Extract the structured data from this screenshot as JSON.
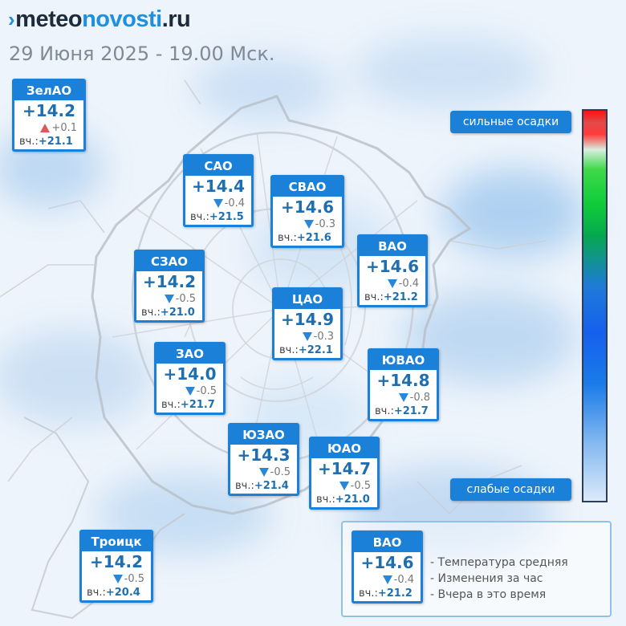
{
  "header": {
    "logo_prefix": "meteo",
    "logo_accent": "novosti",
    "logo_suffix": ".ru",
    "date": "29 Июня 2025 - 19.00 Мск."
  },
  "colors": {
    "card_blue": "#1a80d8",
    "temp_blue": "#1f6fb0",
    "rise_red": "#e0555a",
    "fall_blue": "#2a86d6"
  },
  "yesterday_prefix": "вч.:",
  "districts": [
    {
      "id": "zelao",
      "name": "ЗелАО",
      "temp": "+14.2",
      "change": "+0.1",
      "trend": "up",
      "yesterday": "+21.1"
    },
    {
      "id": "sao",
      "name": "САО",
      "temp": "+14.4",
      "change": "-0.4",
      "trend": "down",
      "yesterday": "+21.5"
    },
    {
      "id": "svao",
      "name": "СВАО",
      "temp": "+14.6",
      "change": "-0.3",
      "trend": "down",
      "yesterday": "+21.6"
    },
    {
      "id": "vao",
      "name": "ВАО",
      "temp": "+14.6",
      "change": "-0.4",
      "trend": "down",
      "yesterday": "+21.2"
    },
    {
      "id": "szao",
      "name": "СЗАО",
      "temp": "+14.2",
      "change": "-0.5",
      "trend": "down",
      "yesterday": "+21.0"
    },
    {
      "id": "cao",
      "name": "ЦАО",
      "temp": "+14.9",
      "change": "-0.3",
      "trend": "down",
      "yesterday": "+22.1"
    },
    {
      "id": "zao",
      "name": "ЗАО",
      "temp": "+14.0",
      "change": "-0.5",
      "trend": "down",
      "yesterday": "+21.7"
    },
    {
      "id": "uvao",
      "name": "ЮВАО",
      "temp": "+14.8",
      "change": "-0.8",
      "trend": "down",
      "yesterday": "+21.7"
    },
    {
      "id": "uzao",
      "name": "ЮЗАО",
      "temp": "+14.3",
      "change": "-0.5",
      "trend": "down",
      "yesterday": "+21.4"
    },
    {
      "id": "uao",
      "name": "ЮАО",
      "temp": "+14.7",
      "change": "-0.5",
      "trend": "down",
      "yesterday": "+21.0"
    },
    {
      "id": "troitsk",
      "name": "Троицк",
      "temp": "+14.2",
      "change": "-0.5",
      "trend": "down",
      "yesterday": "+20.4"
    }
  ],
  "precip_scale": {
    "top_label": "сильные осадки",
    "bottom_label": "слабые осадки"
  },
  "legend": {
    "sample": {
      "name": "ВАО",
      "temp": "+14.6",
      "change": "-0.4",
      "trend": "down",
      "yesterday": "+21.2"
    },
    "lines": [
      "- Температура средняя",
      "- Изменения за час",
      "- Вчера в это время"
    ]
  }
}
